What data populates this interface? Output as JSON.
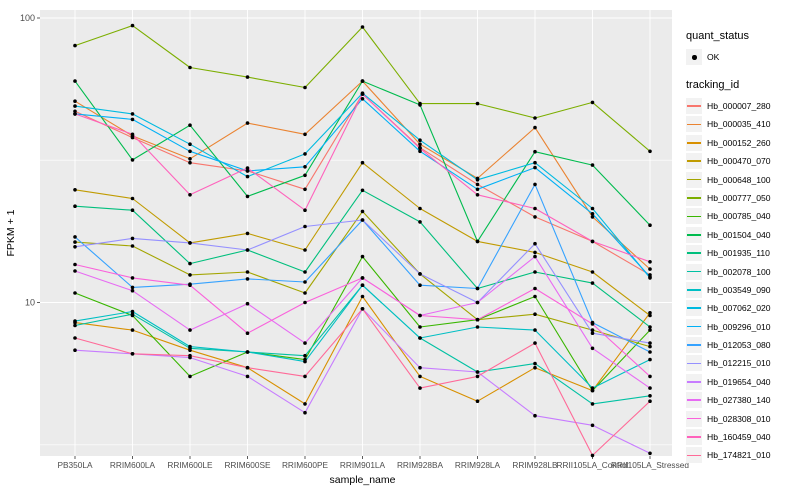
{
  "figure": {
    "panel_background": "#EBEBEB",
    "grid_color": "#FFFFFF",
    "tick_label_color": "#4D4D4D",
    "point_color": "#000000",
    "legend_key_background": "#F2F2F2"
  },
  "axes": {
    "x_title": "sample_name",
    "y_title": "FPKM + 1",
    "y_tick_labels": [
      "100",
      "10"
    ]
  },
  "legend": {
    "quant_status_title": "quant_status",
    "quant_status_items": [
      {
        "label": "OK",
        "marker": "point"
      }
    ],
    "tracking_id_title": "tracking_id"
  },
  "chart_data": {
    "type": "line",
    "title": "",
    "xlabel": "sample_name",
    "ylabel": "FPKM + 1",
    "y_scale": "log10",
    "ylim": [
      2.5,
      110
    ],
    "y_ticks": [
      100,
      10
    ],
    "grid": true,
    "legend_position": "right",
    "point_marker": "black dot on every data point",
    "categories": [
      "PB350LA",
      "RRIM600LA",
      "RRIM600LE",
      "RRIM600SE",
      "RRIM600PE",
      "RRIM901LA",
      "RRIM928BA",
      "RRIM928LA",
      "RRIM928LB",
      "RRII105LA_Control",
      "RRII105LA_Stressed"
    ],
    "series": [
      {
        "name": "Hb_000007_280",
        "color": "#F8766D",
        "values": [
          47,
          38,
          31,
          29,
          25,
          54,
          35,
          26,
          20,
          16.4,
          12.5
        ]
      },
      {
        "name": "Hb_000035_410",
        "color": "#EA8331",
        "values": [
          51,
          38.5,
          32,
          42.7,
          39,
          60,
          36,
          27.3,
          41.2,
          20,
          13.1
        ]
      },
      {
        "name": "Hb_000152_260",
        "color": "#D89000",
        "values": [
          8.5,
          8.0,
          6.8,
          5.9,
          4.4,
          10.5,
          5.5,
          4.5,
          5.9,
          4.9,
          9.2
        ]
      },
      {
        "name": "Hb_000470_070",
        "color": "#C09B00",
        "values": [
          24.9,
          23.2,
          16.2,
          17.5,
          15.3,
          31,
          21.4,
          16.4,
          15,
          12.8,
          9.0
        ]
      },
      {
        "name": "Hb_000648_100",
        "color": "#A3A500",
        "values": [
          16.3,
          15.8,
          12.5,
          12.8,
          10.8,
          20.9,
          12.6,
          8.7,
          9.1,
          8.0,
          7.0
        ]
      },
      {
        "name": "Hb_000777_050",
        "color": "#7CAE00",
        "values": [
          80,
          94,
          67,
          62,
          57,
          93,
          50,
          50,
          44.5,
          50.5,
          34
        ]
      },
      {
        "name": "Hb_000785_040",
        "color": "#39B600",
        "values": [
          10.8,
          9.0,
          5.5,
          6.7,
          6.3,
          14.5,
          8.2,
          8.7,
          10.5,
          4.9,
          8.0
        ]
      },
      {
        "name": "Hb_001504_040",
        "color": "#00BB4E",
        "values": [
          60,
          31.7,
          42,
          23.6,
          28,
          60,
          49.5,
          16.4,
          33.9,
          30.4,
          18.7
        ]
      },
      {
        "name": "Hb_001935_110",
        "color": "#00BF7D",
        "values": [
          21.8,
          21.1,
          13.7,
          15.3,
          12.8,
          24.8,
          19.2,
          11.2,
          12.8,
          11.7,
          8.2
        ]
      },
      {
        "name": "Hb_002078_100",
        "color": "#00C1A3",
        "values": [
          8.3,
          9.1,
          6.9,
          6.7,
          6.5,
          11.5,
          7.5,
          5.7,
          6.1,
          4.4,
          4.7
        ]
      },
      {
        "name": "Hb_003549_090",
        "color": "#00BFC4",
        "values": [
          8.6,
          9.3,
          7.0,
          6.7,
          6.2,
          11.5,
          7.5,
          8.2,
          8.0,
          5.0,
          6.3
        ]
      },
      {
        "name": "Hb_007062_020",
        "color": "#00BAE0",
        "values": [
          49,
          46,
          36,
          27.7,
          33.3,
          54.4,
          37.2,
          27,
          31,
          21.4,
          12.2
        ]
      },
      {
        "name": "Hb_009296_010",
        "color": "#00B0F6",
        "values": [
          46,
          44,
          34,
          29,
          30,
          52,
          34,
          25,
          29.8,
          20.5,
          12.3
        ]
      },
      {
        "name": "Hb_012053_080",
        "color": "#35A2FF",
        "values": [
          17,
          11.3,
          11.6,
          12.1,
          11.8,
          19.5,
          11.5,
          11.2,
          26,
          8.5,
          6.7
        ]
      },
      {
        "name": "Hb_012215_010",
        "color": "#9590FF",
        "values": [
          15.7,
          16.8,
          16.2,
          15.3,
          18.5,
          19.5,
          12.6,
          10.0,
          16.1,
          7.8,
          7.2
        ]
      },
      {
        "name": "Hb_019654_040",
        "color": "#C77CFF",
        "values": [
          6.8,
          6.6,
          6.4,
          5.5,
          4.1,
          9.5,
          5.9,
          5.7,
          4.0,
          3.7,
          2.95
        ]
      },
      {
        "name": "Hb_027380_140",
        "color": "#E76BF3",
        "values": [
          12.9,
          11.0,
          8.0,
          9.9,
          7.2,
          12.2,
          9.0,
          10.0,
          14.5,
          6.9,
          5.0
        ]
      },
      {
        "name": "Hb_028308_010",
        "color": "#FA62DB",
        "values": [
          13.6,
          12.2,
          11.5,
          7.8,
          10.0,
          12.2,
          9.0,
          8.7,
          11.2,
          8.4,
          5.5
        ]
      },
      {
        "name": "Hb_160459_040",
        "color": "#FF62BC",
        "values": [
          46,
          39,
          23.9,
          29.7,
          21.1,
          54,
          34.8,
          23.9,
          21.4,
          16.4,
          13.9
        ]
      },
      {
        "name": "Hb_174821_010",
        "color": "#FF6A98",
        "values": [
          7.5,
          6.6,
          6.5,
          5.9,
          5.5,
          9.5,
          5.0,
          5.5,
          7.2,
          2.9,
          4.5
        ]
      }
    ]
  }
}
